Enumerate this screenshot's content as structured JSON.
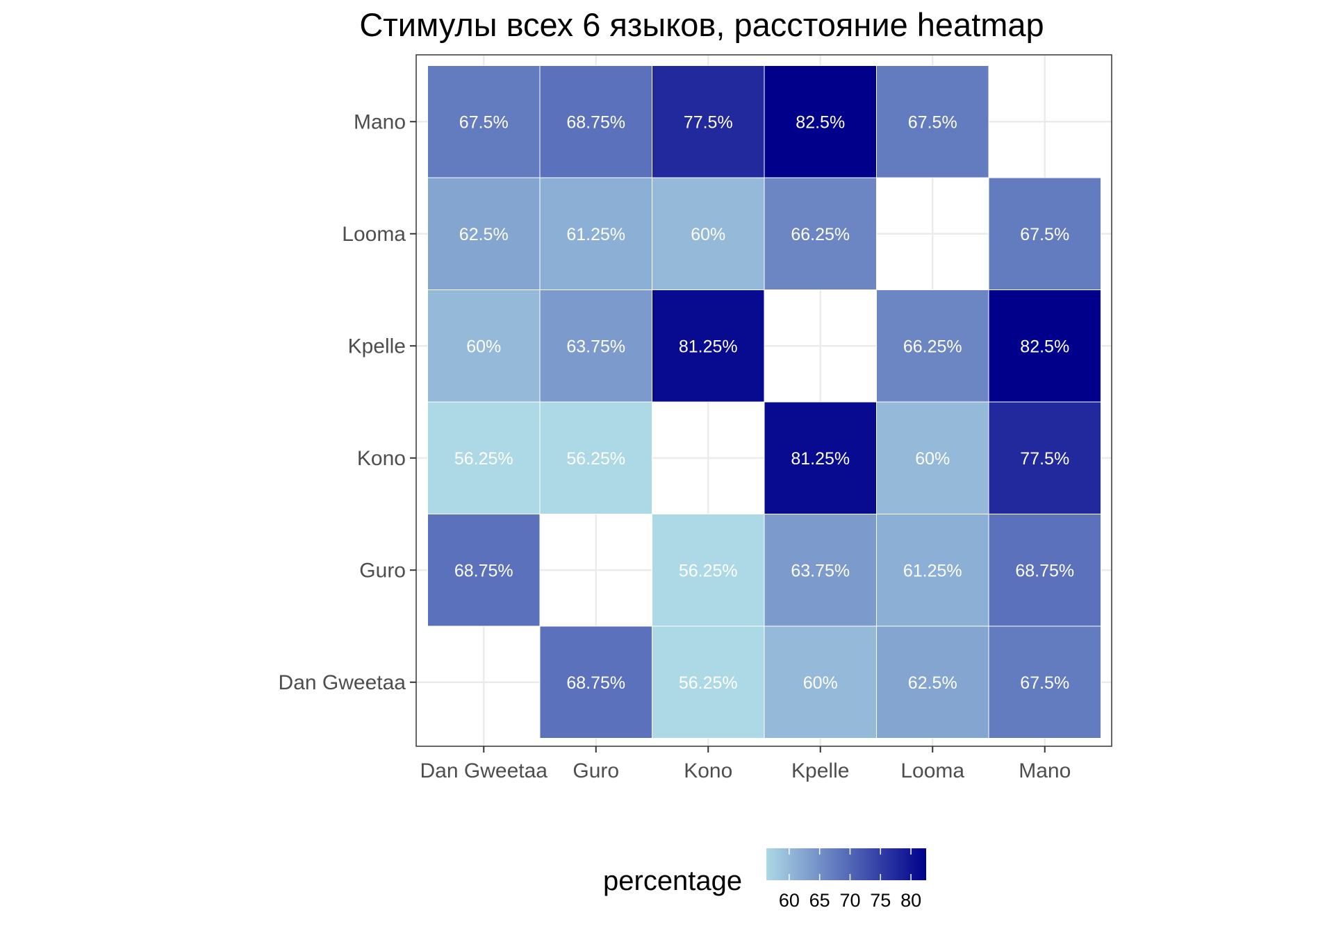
{
  "chart_data": {
    "type": "heatmap",
    "title": "Стимулы всех 6 языков, расстояние heatmap",
    "xlabel": "",
    "ylabel": "",
    "x_categories": [
      "Dan Gweetaa",
      "Guro",
      "Kono",
      "Kpelle",
      "Looma",
      "Mano"
    ],
    "y_categories": [
      "Dan Gweetaa",
      "Guro",
      "Kono",
      "Kpelle",
      "Looma",
      "Mano"
    ],
    "values": [
      [
        null,
        68.75,
        56.25,
        60,
        62.5,
        67.5
      ],
      [
        68.75,
        null,
        56.25,
        63.75,
        61.25,
        68.75
      ],
      [
        56.25,
        56.25,
        null,
        81.25,
        60,
        77.5
      ],
      [
        60,
        63.75,
        81.25,
        null,
        66.25,
        82.5
      ],
      [
        62.5,
        61.25,
        60,
        66.25,
        null,
        67.5
      ],
      [
        67.5,
        68.75,
        77.5,
        82.5,
        67.5,
        null
      ]
    ],
    "value_labels": [
      [
        "",
        "68.75%",
        "56.25%",
        "60%",
        "62.5%",
        "67.5%"
      ],
      [
        "68.75%",
        "",
        "56.25%",
        "63.75%",
        "61.25%",
        "68.75%"
      ],
      [
        "56.25%",
        "56.25%",
        "",
        "81.25%",
        "60%",
        "77.5%"
      ],
      [
        "60%",
        "63.75%",
        "81.25%",
        "",
        "66.25%",
        "82.5%"
      ],
      [
        "62.5%",
        "61.25%",
        "60%",
        "66.25%",
        "",
        "67.5%"
      ],
      [
        "67.5%",
        "68.75%",
        "77.5%",
        "82.5%",
        "67.5%",
        ""
      ]
    ],
    "legend": {
      "title": "percentage",
      "ticks": [
        60,
        65,
        70,
        75,
        80
      ],
      "range": [
        56.25,
        82.5
      ],
      "color_low": "#add8e6",
      "color_high": "#00008b",
      "placement": "bottom"
    },
    "grid": true,
    "theme_colors": {
      "panel_border": "#333333",
      "grid": "#ebebeb",
      "cell_border": "#ffffff"
    }
  }
}
